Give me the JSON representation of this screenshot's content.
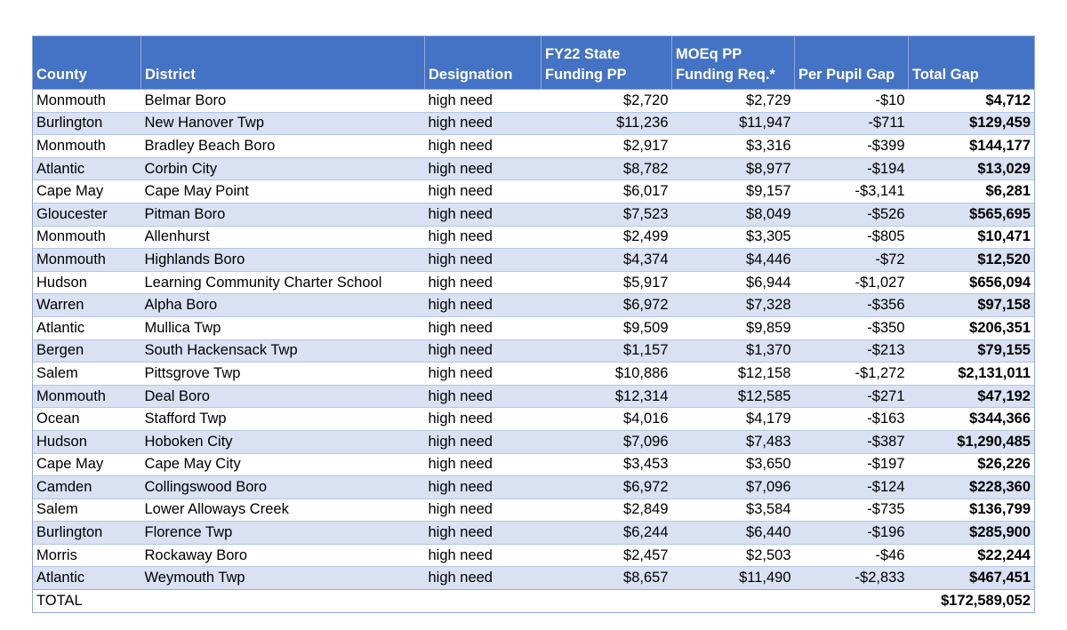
{
  "table": {
    "headers": [
      [
        "County"
      ],
      [
        "District"
      ],
      [
        "Designation"
      ],
      [
        "FY22 State",
        "Funding PP"
      ],
      [
        "MOEq PP",
        "Funding Req.*"
      ],
      [
        "Per Pupil Gap"
      ],
      [
        "Total Gap"
      ]
    ],
    "rows": [
      [
        "Monmouth",
        "Belmar Boro",
        "high need",
        "$2,720",
        "$2,729",
        "-$10",
        "$4,712"
      ],
      [
        "Burlington",
        "New Hanover Twp",
        "high need",
        "$11,236",
        "$11,947",
        "-$711",
        "$129,459"
      ],
      [
        "Monmouth",
        "Bradley Beach Boro",
        "high need",
        "$2,917",
        "$3,316",
        "-$399",
        "$144,177"
      ],
      [
        "Atlantic",
        "Corbin City",
        "high need",
        "$8,782",
        "$8,977",
        "-$194",
        "$13,029"
      ],
      [
        "Cape May",
        "Cape May Point",
        "high need",
        "$6,017",
        "$9,157",
        "-$3,141",
        "$6,281"
      ],
      [
        "Gloucester",
        "Pitman Boro",
        "high need",
        "$7,523",
        "$8,049",
        "-$526",
        "$565,695"
      ],
      [
        "Monmouth",
        "Allenhurst",
        "high need",
        "$2,499",
        "$3,305",
        "-$805",
        "$10,471"
      ],
      [
        "Monmouth",
        "Highlands Boro",
        "high need",
        "$4,374",
        "$4,446",
        "-$72",
        "$12,520"
      ],
      [
        "Hudson",
        "Learning Community Charter School",
        "high need",
        "$5,917",
        "$6,944",
        "-$1,027",
        "$656,094"
      ],
      [
        "Warren",
        "Alpha Boro",
        "high need",
        "$6,972",
        "$7,328",
        "-$356",
        "$97,158"
      ],
      [
        "Atlantic",
        "Mullica Twp",
        "high need",
        "$9,509",
        "$9,859",
        "-$350",
        "$206,351"
      ],
      [
        "Bergen",
        "South Hackensack Twp",
        "high need",
        "$1,157",
        "$1,370",
        "-$213",
        "$79,155"
      ],
      [
        "Salem",
        "Pittsgrove Twp",
        "high need",
        "$10,886",
        "$12,158",
        "-$1,272",
        "$2,131,011"
      ],
      [
        "Monmouth",
        "Deal Boro",
        "high need",
        "$12,314",
        "$12,585",
        "-$271",
        "$47,192"
      ],
      [
        "Ocean",
        "Stafford Twp",
        "high need",
        "$4,016",
        "$4,179",
        "-$163",
        "$344,366"
      ],
      [
        "Hudson",
        "Hoboken City",
        "high need",
        "$7,096",
        "$7,483",
        "-$387",
        "$1,290,485"
      ],
      [
        "Cape May",
        "Cape May City",
        "high need",
        "$3,453",
        "$3,650",
        "-$197",
        "$26,226"
      ],
      [
        "Camden",
        "Collingswood Boro",
        "high need",
        "$6,972",
        "$7,096",
        "-$124",
        "$228,360"
      ],
      [
        "Salem",
        "Lower Alloways Creek",
        "high need",
        "$2,849",
        "$3,584",
        "-$735",
        "$136,799"
      ],
      [
        "Burlington",
        "Florence Twp",
        "high need",
        "$6,244",
        "$6,440",
        "-$196",
        "$285,900"
      ],
      [
        "Morris",
        "Rockaway Boro",
        "high need",
        "$2,457",
        "$2,503",
        "-$46",
        "$22,244"
      ],
      [
        "Atlantic",
        "Weymouth Twp",
        "high need",
        "$8,657",
        "$11,490",
        "-$2,833",
        "$467,451"
      ]
    ],
    "total": {
      "label": "TOTAL",
      "value": "$172,589,052"
    }
  }
}
